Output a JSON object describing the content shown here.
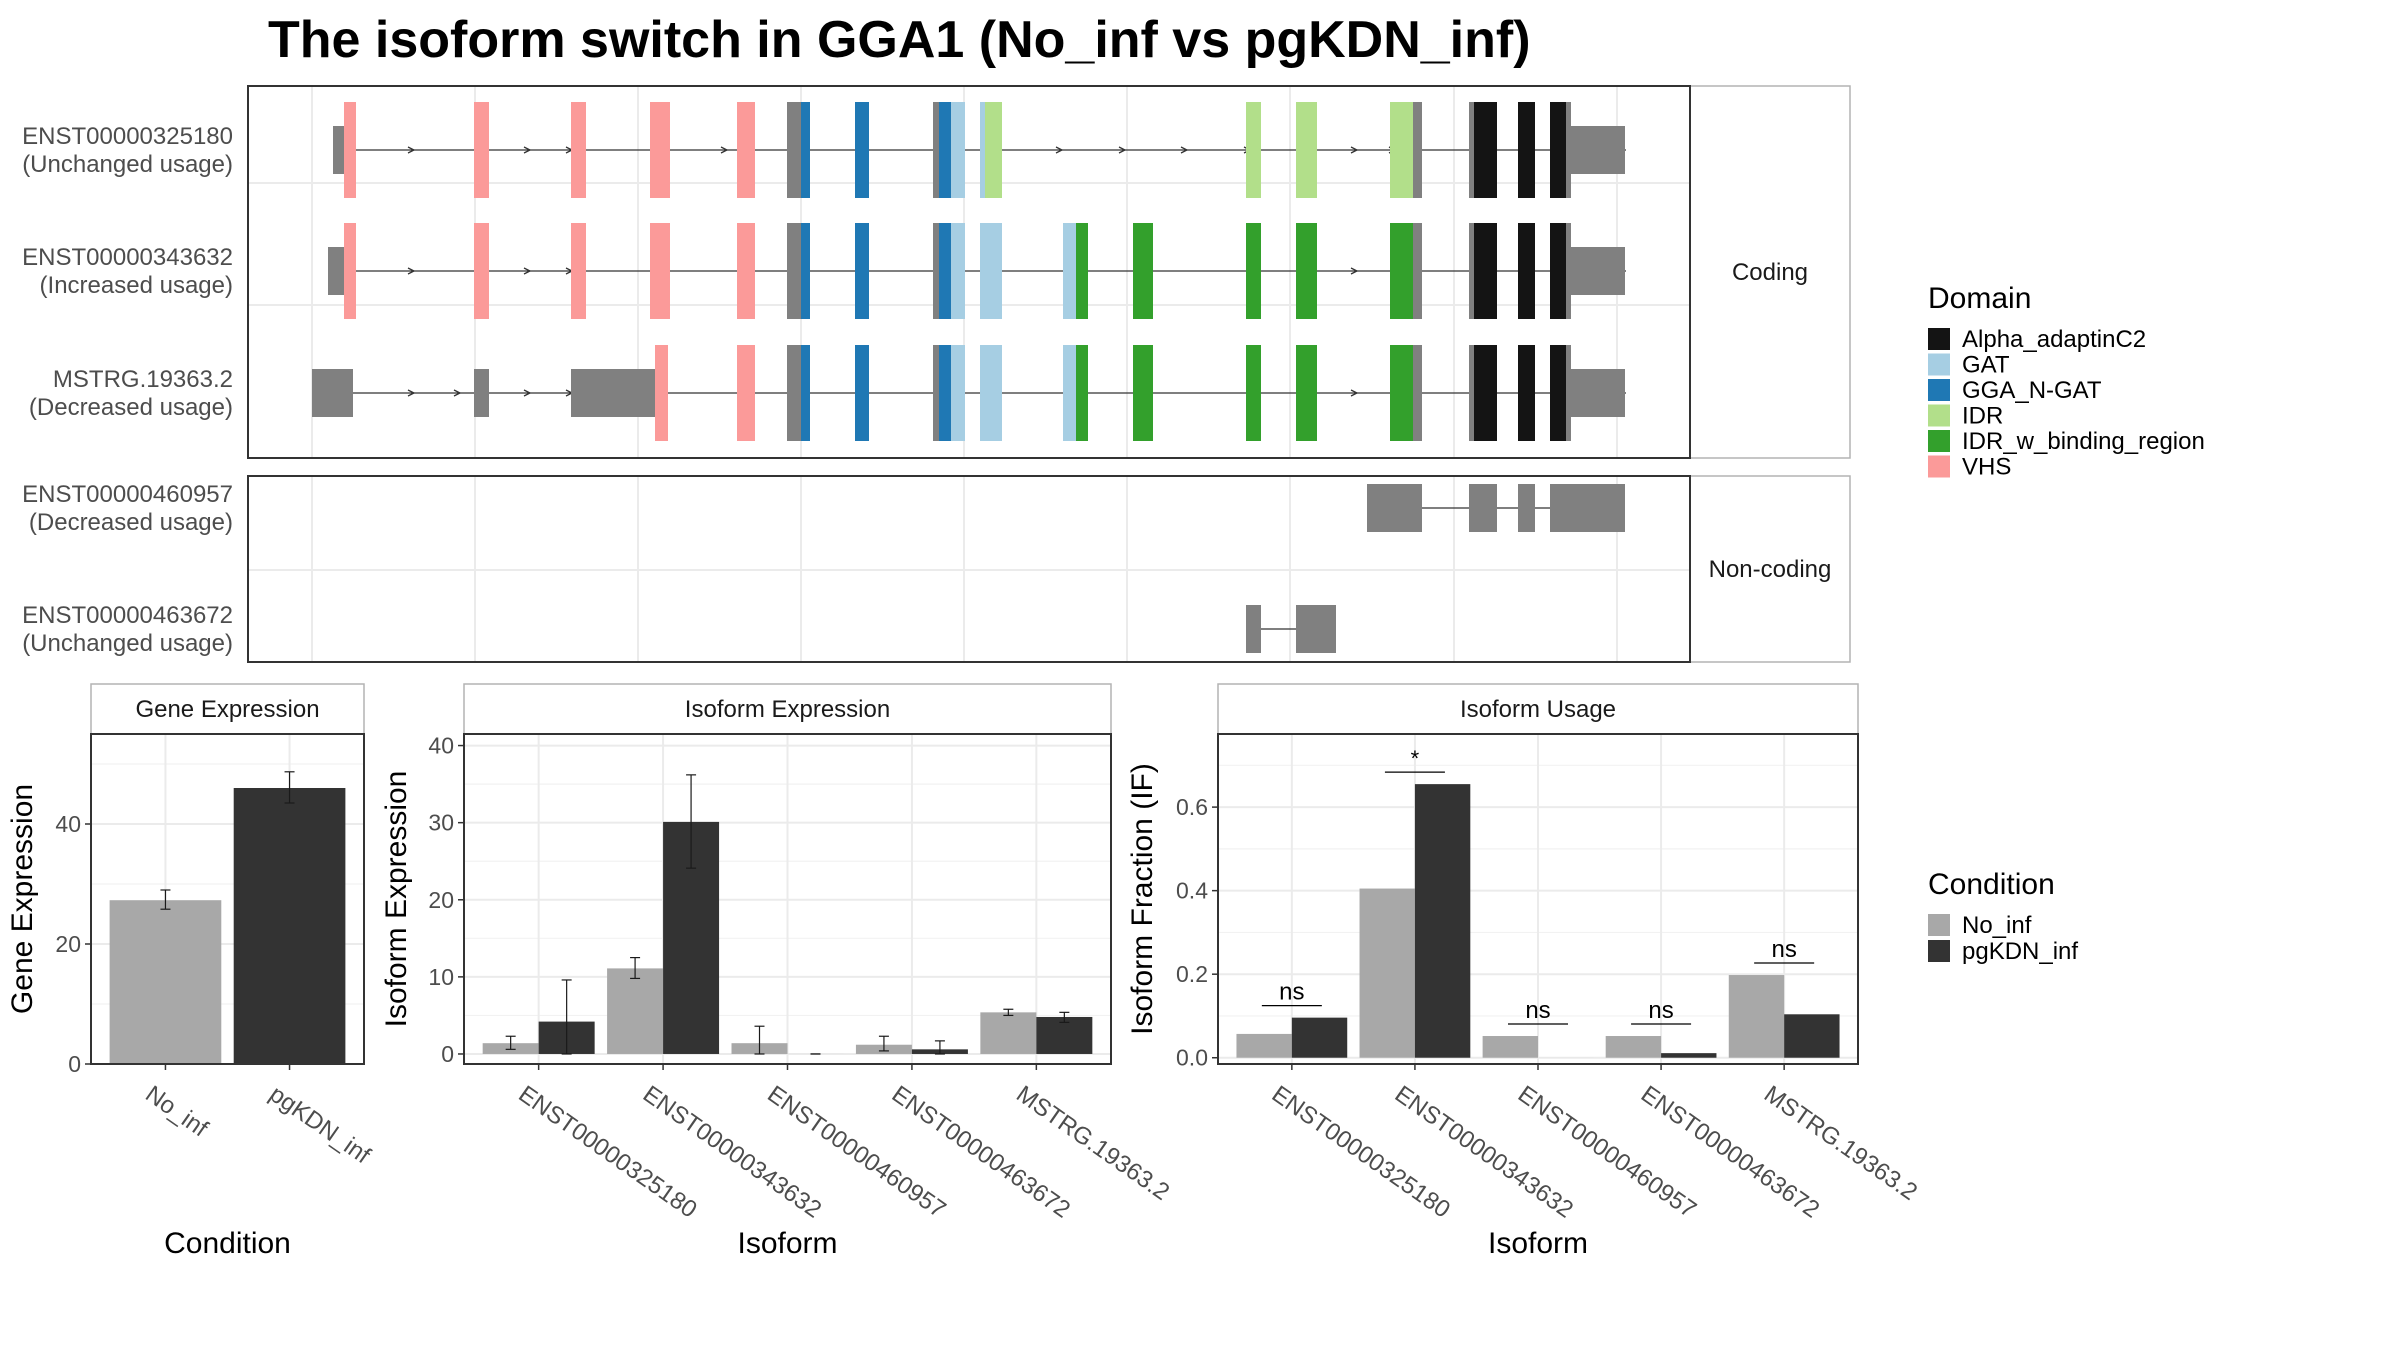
{
  "title": "The isoform switch in GGA1 (No_inf vs pgKDN_inf)",
  "colors": {
    "no_inf": "#a8a8a8",
    "pgkdn_inf": "#333333",
    "utr": "#808080",
    "Alpha_adaptinC2": "#141414",
    "GAT": "#a6cee3",
    "GGA_N-GAT": "#1f78b4",
    "IDR": "#b2df8a",
    "IDR_w_binding_region": "#33a02c",
    "VHS": "#fb9a99"
  },
  "structure": {
    "panels": [
      {
        "strip": "Coding",
        "transcripts": [
          {
            "id": "ENST00000325180",
            "usage": "(Unchanged usage)"
          },
          {
            "id": "ENST00000343632",
            "usage": "(Increased usage)"
          },
          {
            "id": "MSTRG.19363.2",
            "usage": "(Decreased usage)"
          }
        ]
      },
      {
        "strip": "Non-coding",
        "transcripts": [
          {
            "id": "ENST00000460957",
            "usage": "(Decreased usage)"
          },
          {
            "id": "ENST00000463672",
            "usage": "(Unchanged usage)"
          }
        ]
      }
    ]
  },
  "legend_domain": {
    "title": "Domain",
    "items": [
      "Alpha_adaptinC2",
      "GAT",
      "GGA_N-GAT",
      "IDR",
      "IDR_w_binding_region",
      "VHS"
    ]
  },
  "legend_condition": {
    "title": "Condition",
    "items": [
      "No_inf",
      "pgKDN_inf"
    ]
  },
  "chart_data": [
    {
      "type": "bar",
      "title": "Gene Expression",
      "xlabel": "Condition",
      "ylabel": "Gene Expression",
      "categories": [
        "No_inf",
        "pgKDN_inf"
      ],
      "values": [
        27.3,
        46.0
      ],
      "error": [
        [
          25.8,
          29.0
        ],
        [
          43.5,
          48.7
        ]
      ],
      "yticks": [
        0,
        20,
        40
      ],
      "ylim": [
        0,
        55
      ]
    },
    {
      "type": "bar",
      "title": "Isoform Expression",
      "xlabel": "Isoform",
      "ylabel": "Isoform Expression",
      "categories": [
        "ENST00000325180",
        "ENST00000343632",
        "ENST00000460957",
        "ENST00000463672",
        "MSTRG.19363.2"
      ],
      "series": [
        {
          "name": "No_inf",
          "values": [
            1.4,
            11.1,
            1.4,
            1.2,
            5.4
          ],
          "error": [
            [
              0.6,
              2.3
            ],
            [
              9.8,
              12.5
            ],
            [
              0.0,
              3.6
            ],
            [
              0.4,
              2.3
            ],
            [
              5.0,
              5.8
            ]
          ]
        },
        {
          "name": "pgKDN_inf",
          "values": [
            4.2,
            30.1,
            0.0,
            0.6,
            4.8
          ],
          "error": [
            [
              0.0,
              9.6
            ],
            [
              24.1,
              36.2
            ],
            [
              0.0,
              0.0
            ],
            [
              0.0,
              1.7
            ],
            [
              4.1,
              5.4
            ]
          ]
        }
      ],
      "yticks": [
        0,
        10,
        20,
        30,
        40
      ],
      "ylim": [
        -1.3,
        41.5
      ]
    },
    {
      "type": "bar",
      "title": "Isoform Usage",
      "xlabel": "Isoform",
      "ylabel": "Isoform Fraction (IF)",
      "categories": [
        "ENST00000325180",
        "ENST00000343632",
        "ENST00000460957",
        "ENST00000463672",
        "MSTRG.19363.2"
      ],
      "series": [
        {
          "name": "No_inf",
          "values": [
            0.057,
            0.405,
            0.052,
            0.052,
            0.198
          ]
        },
        {
          "name": "pgKDN_inf",
          "values": [
            0.096,
            0.655,
            0.0,
            0.011,
            0.104
          ]
        }
      ],
      "significance": [
        "ns",
        "*",
        "ns",
        "ns",
        "ns"
      ],
      "yticks": [
        0.0,
        0.2,
        0.4,
        0.6
      ],
      "ylim": [
        -0.015,
        0.775
      ]
    }
  ]
}
